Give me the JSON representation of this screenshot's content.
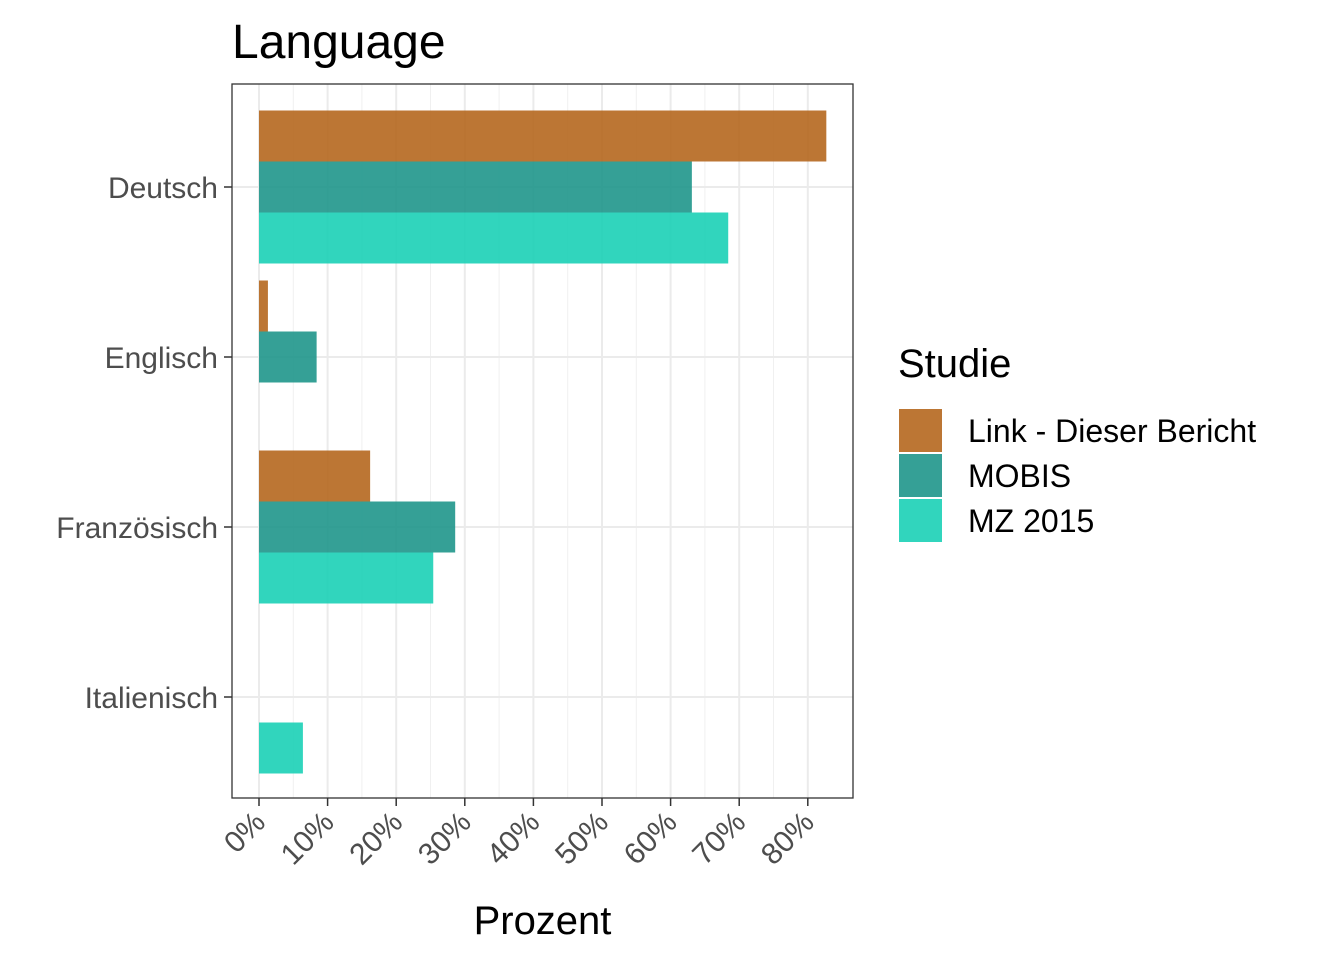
{
  "chart_data": {
    "type": "bar",
    "orientation": "horizontal",
    "title": "Language",
    "xlabel": "Prozent",
    "ylabel": "",
    "categories": [
      "Deutsch",
      "Englisch",
      "Französisch",
      "Italienisch"
    ],
    "xlim": [
      -0.04,
      0.87
    ],
    "xticks": [
      0,
      0.1,
      0.2,
      0.3,
      0.4,
      0.5,
      0.6,
      0.7,
      0.8
    ],
    "xtick_labels": [
      "0%",
      "10%",
      "20%",
      "30%",
      "40%",
      "50%",
      "60%",
      "70%",
      "80%"
    ],
    "grid": true,
    "legend": {
      "title": "Studie",
      "position": "right"
    },
    "series": [
      {
        "name": "Link - Dieser Bericht",
        "color": "#B5671E",
        "values": [
          0.827,
          0.013,
          0.162,
          null
        ]
      },
      {
        "name": "MOBIS",
        "color": "#1F968B",
        "values": [
          0.631,
          0.084,
          0.286,
          null
        ]
      },
      {
        "name": "MZ 2015",
        "color": "#1BD0B6",
        "values": [
          0.684,
          null,
          0.254,
          0.064
        ]
      }
    ]
  }
}
